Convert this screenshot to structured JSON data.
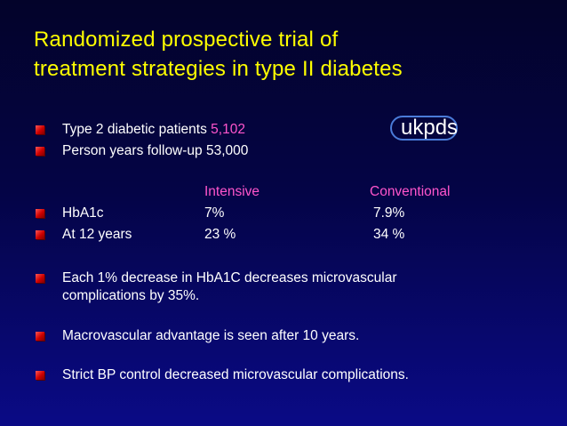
{
  "title": {
    "line1": "Randomized prospective trial of",
    "line2": "treatment strategies in type II diabetes"
  },
  "logo": "ukpds",
  "intro": {
    "patients_label": "Type 2 diabetic patients ",
    "patients_value": "5,102",
    "followup": "Person years follow-up 53,000"
  },
  "table": {
    "col_intensive": "Intensive",
    "col_conventional": "Conventional",
    "rows": [
      {
        "label": "HbA1c",
        "intensive": "7%",
        "conventional": "7.9%"
      },
      {
        "label": "At 12 years",
        "intensive": "23 %",
        "conventional": "34 %"
      }
    ]
  },
  "points": {
    "p1_line1": "Each 1% decrease in HbA1C decreases microvascular",
    "p1_line2": "complications by 35%.",
    "p2": "Macrovascular advantage is seen after 10 years.",
    "p3": "Strict BP control decreased microvascular complications."
  },
  "colors": {
    "title": "#ffff00",
    "accent": "#ff55cc",
    "bullet": "#cc0000",
    "text": "#ffffff"
  }
}
